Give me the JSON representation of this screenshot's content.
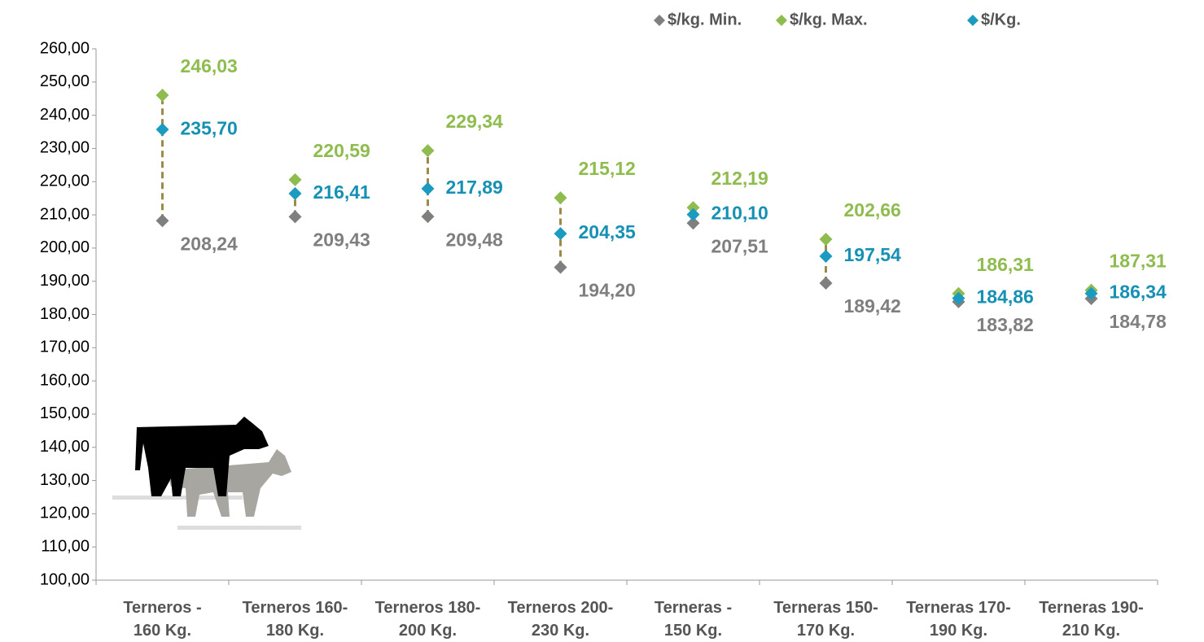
{
  "chart_data": {
    "type": "scatter",
    "categories": [
      "Terneros - 160 Kg.",
      "Terneros 160-180 Kg.",
      "Terneros 180-200 Kg.",
      "Terneros 200-230 Kg.",
      "Terneras - 150 Kg.",
      "Terneras 150-170 Kg.",
      "Terneras 170-190 Kg.",
      "Terneras 190-210 Kg."
    ],
    "series": [
      {
        "name": "$/kg. Min.",
        "color": "#7f7f7f",
        "label_color": "#7f7f7f",
        "values": [
          208.24,
          209.43,
          209.48,
          194.2,
          207.51,
          189.42,
          183.82,
          184.78
        ],
        "value_labels": [
          "208,24",
          "209,43",
          "209,48",
          "194,20",
          "207,51",
          "189,42",
          "183,82",
          "184,78"
        ]
      },
      {
        "name": "$/kg. Max.",
        "color": "#8fbc4f",
        "label_color": "#8fbc4f",
        "values": [
          246.03,
          220.59,
          229.34,
          215.12,
          212.19,
          202.66,
          186.31,
          187.31
        ],
        "value_labels": [
          "246,03",
          "220,59",
          "229,34",
          "215,12",
          "212,19",
          "202,66",
          "186,31",
          "187,31"
        ]
      },
      {
        "name": "$/Kg.",
        "color": "#1b9bbf",
        "label_color": "#1791b3",
        "values": [
          235.7,
          216.41,
          217.89,
          204.35,
          210.1,
          197.54,
          184.86,
          186.34
        ],
        "value_labels": [
          "235,70",
          "216,41",
          "217,89",
          "204,35",
          "210,10",
          "197,54",
          "184,86",
          "186,34"
        ]
      }
    ],
    "high_low_lines_color": "#9c8a4a",
    "ylim": [
      100,
      260
    ],
    "yticks": [
      {
        "value": 100,
        "label": "100,00"
      },
      {
        "value": 110,
        "label": "110,00"
      },
      {
        "value": 120,
        "label": "120,00"
      },
      {
        "value": 130,
        "label": "130,00"
      },
      {
        "value": 140,
        "label": "140,00"
      },
      {
        "value": 150,
        "label": "150,00"
      },
      {
        "value": 160,
        "label": "160,00"
      },
      {
        "value": 170,
        "label": "170,00"
      },
      {
        "value": 180,
        "label": "180,00"
      },
      {
        "value": 190,
        "label": "190,00"
      },
      {
        "value": 200,
        "label": "200,00"
      },
      {
        "value": 210,
        "label": "210,00"
      },
      {
        "value": 220,
        "label": "220,00"
      },
      {
        "value": 230,
        "label": "230,00"
      },
      {
        "value": 240,
        "label": "240,00"
      },
      {
        "value": 250,
        "label": "250,00"
      },
      {
        "value": 260,
        "label": "260,00"
      }
    ],
    "grid": false,
    "legend": "top"
  }
}
